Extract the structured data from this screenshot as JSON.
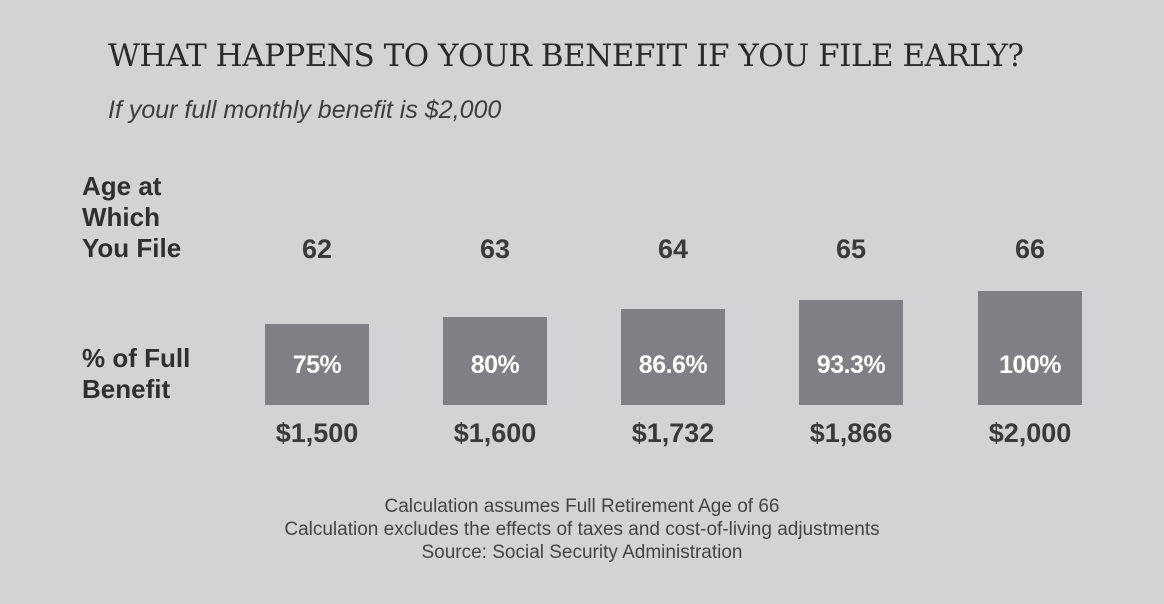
{
  "title": "WHAT HAPPENS TO YOUR BENEFIT IF YOU FILE EARLY?",
  "subtitle": "If your full monthly benefit is $2,000",
  "row_labels": {
    "age": [
      "Age at",
      "Which",
      "You File"
    ],
    "percent": [
      "% of Full",
      "Benefit"
    ]
  },
  "colors": {
    "background": "#d3d3d5",
    "bar": "#808084",
    "bar_text": "#ffffff"
  },
  "chart_data": {
    "type": "bar",
    "categories": [
      "62",
      "63",
      "64",
      "65",
      "66"
    ],
    "values": [
      75,
      80,
      86.6,
      93.3,
      100
    ],
    "value_labels": [
      "75%",
      "80%",
      "86.6%",
      "93.3%",
      "100%"
    ],
    "amounts": [
      "$1,500",
      "$1,600",
      "$1,732",
      "$1,866",
      "$2,000"
    ],
    "title": "WHAT HAPPENS TO YOUR BENEFIT IF YOU FILE EARLY?",
    "subtitle": "If your full monthly benefit is $2,000",
    "grid": false,
    "legend": "none"
  },
  "notes": [
    "Calculation assumes Full Retirement Age of 66",
    "Calculation excludes the effects of taxes and cost-of-living adjustments",
    "Source: Social Security Administration"
  ]
}
